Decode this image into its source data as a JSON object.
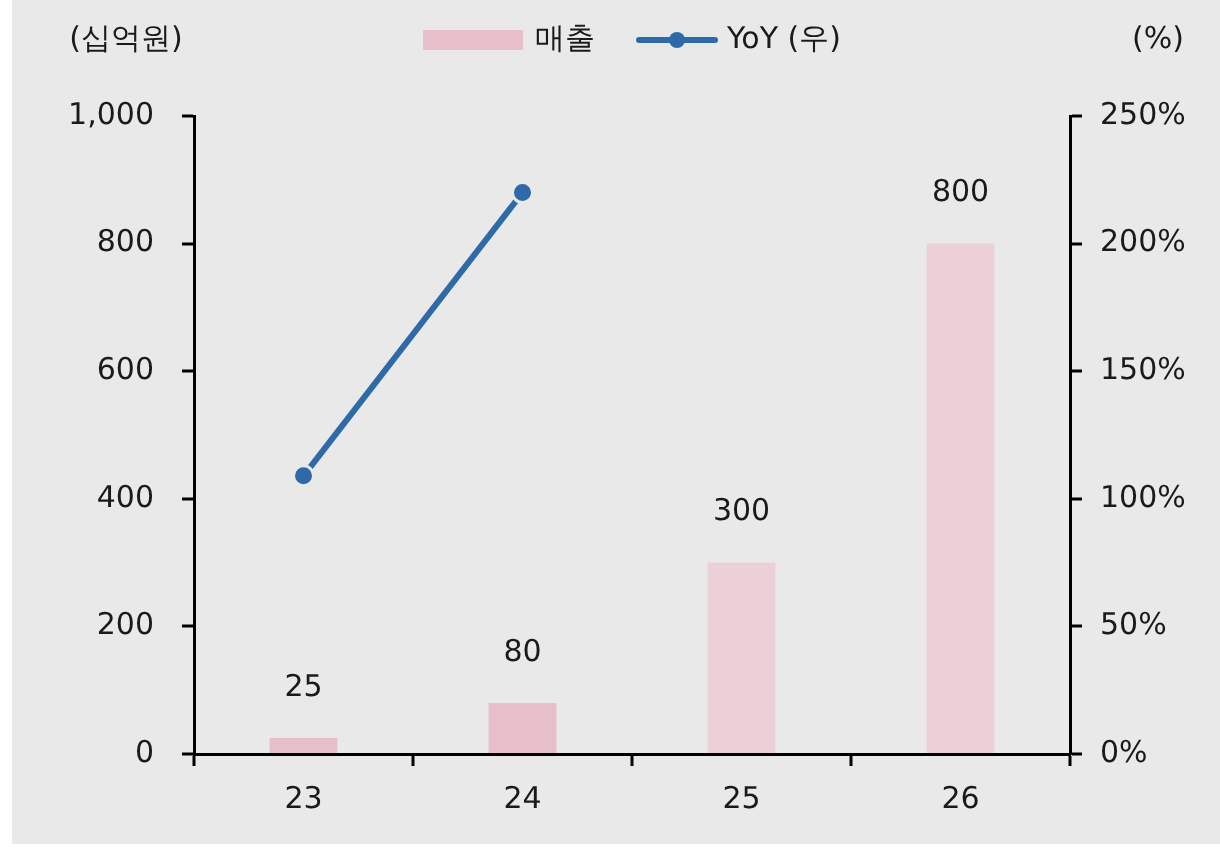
{
  "chart_data": {
    "type": "bar",
    "ylabel": "(십억원)",
    "y2label": "(%)",
    "categories": [
      "23",
      "24",
      "25",
      "26"
    ],
    "series": [
      {
        "name": "매출",
        "color": "#e6bfcb",
        "colors": [
          "#e6bfcb",
          "#e6bfcb",
          "#ecd0d8",
          "#ecd0d8"
        ],
        "values": [
          25,
          80,
          300,
          800
        ],
        "value_labels": [
          "25",
          "80",
          "300",
          "800"
        ]
      },
      {
        "name": "YoY (우)",
        "type": "line",
        "axis": "y2",
        "color": "#2e6aa8",
        "values": [
          109,
          220,
          null,
          null
        ]
      }
    ],
    "marker": "circle",
    "line_style": "solid",
    "ylim": [
      0,
      1000
    ],
    "yticks": [
      0,
      200,
      400,
      600,
      800,
      {
        "value": 1000,
        "label": "1,000"
      }
    ],
    "y2lim": [
      0,
      250
    ],
    "y2ticks": [
      {
        "value": 0,
        "label": "0%"
      },
      {
        "value": 50,
        "label": "50%"
      },
      {
        "value": 100,
        "label": "100%"
      },
      {
        "value": 150,
        "label": "150%"
      },
      {
        "value": 200,
        "label": "200%"
      },
      {
        "value": 250,
        "label": "250%"
      }
    ],
    "legend": "top"
  }
}
